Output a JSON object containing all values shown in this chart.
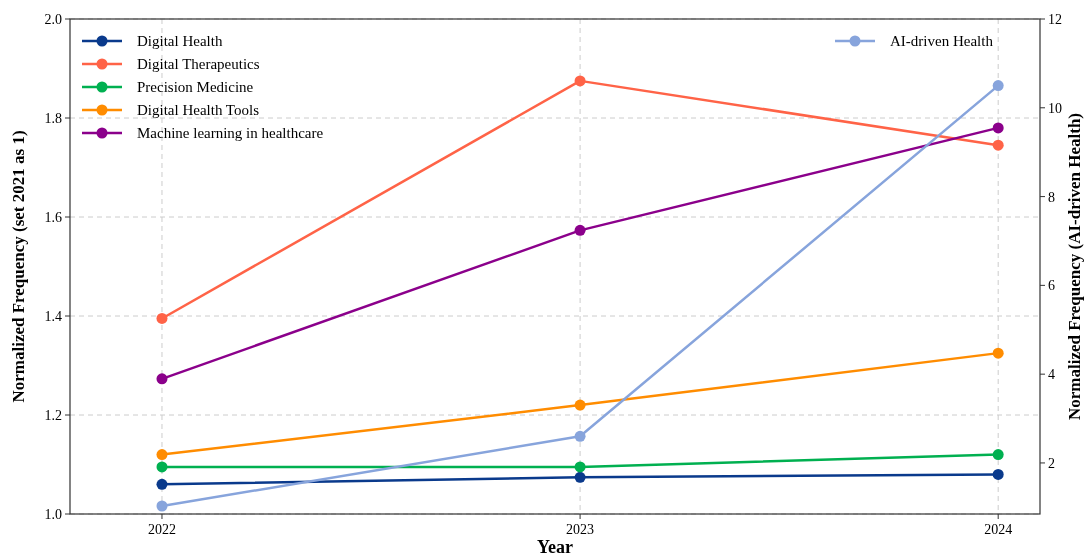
{
  "chart_data": {
    "type": "line",
    "xlabel": "Year",
    "ylabel": "Normalized Frequency (set 2021 as 1)",
    "y2label": "Normalized Frequency (AI-driven Health)",
    "x": [
      2022,
      2023,
      2024
    ],
    "xlim": [
      2021.78,
      2024.1
    ],
    "xticks": [
      2022,
      2023,
      2024
    ],
    "ylim": [
      1.0,
      2.0
    ],
    "yticks": [
      {
        "value": 1,
        "label": "1.0"
      },
      1.2,
      1.4,
      1.6,
      1.8,
      {
        "value": 2,
        "label": "2.0"
      }
    ],
    "y2lim": [
      0.85,
      12
    ],
    "y2ticks": [
      2,
      4,
      6,
      8,
      10,
      12
    ],
    "grid": true,
    "legend": "top left",
    "marker": "circle",
    "line_style": "solid",
    "series": [
      {
        "name": "Digital Health",
        "color": "#0a3a8c",
        "values": [
          1.06,
          1.074,
          1.08
        ]
      },
      {
        "name": "Digital Therapeutics",
        "color": "#ff6347",
        "values": [
          1.395,
          1.875,
          1.745
        ]
      },
      {
        "name": "Precision Medicine",
        "color": "#00b050",
        "values": [
          1.095,
          1.095,
          1.12
        ]
      },
      {
        "name": "Digital Health Tools",
        "color": "#ff8c00",
        "values": [
          1.12,
          1.22,
          1.325
        ]
      },
      {
        "name": "Machine learning in healthcare",
        "color": "#8b008b",
        "values": [
          1.273,
          1.573,
          1.78
        ]
      },
      {
        "name": "AI-driven Health",
        "color": "#87a4dc",
        "axis": "y2",
        "values": [
          1.03,
          2.6,
          10.5
        ]
      }
    ]
  }
}
